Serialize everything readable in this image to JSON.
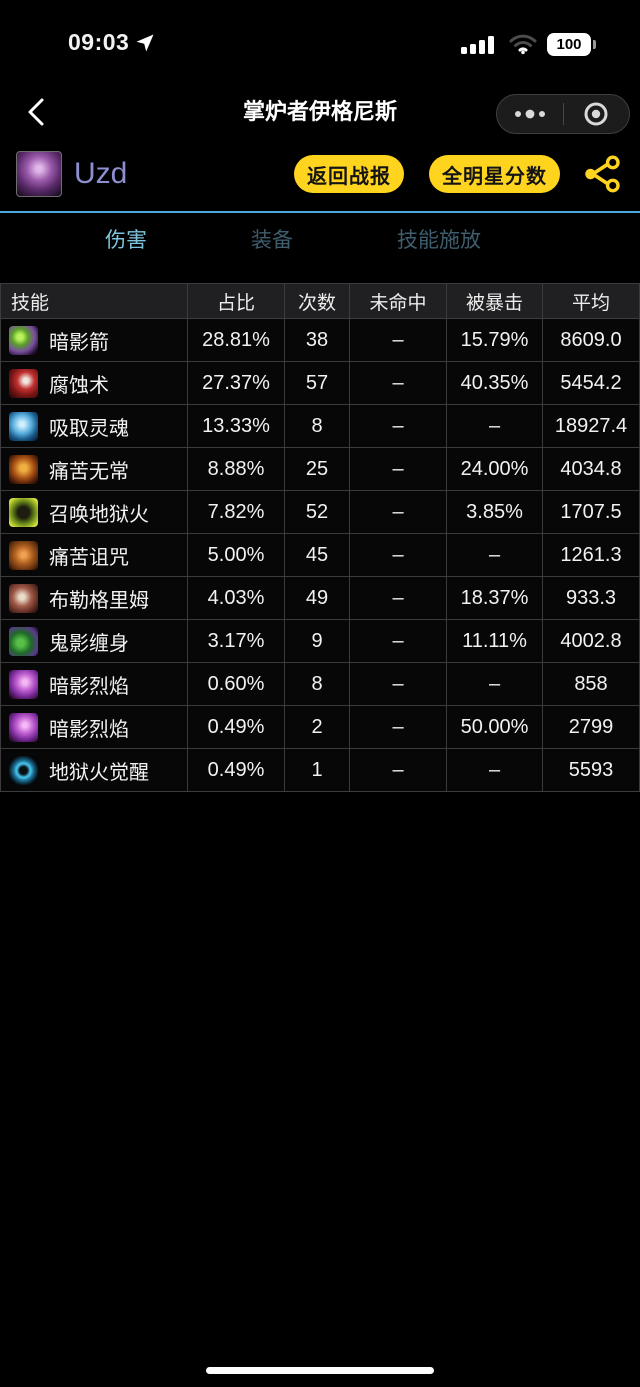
{
  "status_bar": {
    "time": "09:03",
    "battery": "100"
  },
  "nav": {
    "title": "掌炉者伊格尼斯"
  },
  "player": {
    "name": "Uzd",
    "back_button": "返回战报",
    "allstar_button": "全明星分数"
  },
  "tabs": [
    {
      "id": "damage",
      "label": "伤害",
      "active": true
    },
    {
      "id": "equipment",
      "label": "装备",
      "active": false
    },
    {
      "id": "casts",
      "label": "技能施放",
      "active": false
    }
  ],
  "table": {
    "headers": [
      "技能",
      "占比",
      "次数",
      "未命中",
      "被暴击",
      "平均"
    ],
    "rows": [
      {
        "skill": "暗影箭",
        "icon": "shadow-bolt",
        "pct": "28.81%",
        "count": "38",
        "miss": "–",
        "crit": "15.79%",
        "avg": "8609.0"
      },
      {
        "skill": "腐蚀术",
        "icon": "corruption",
        "pct": "27.37%",
        "count": "57",
        "miss": "–",
        "crit": "40.35%",
        "avg": "5454.2"
      },
      {
        "skill": "吸取灵魂",
        "icon": "drain-soul",
        "pct": "13.33%",
        "count": "8",
        "miss": "–",
        "crit": "–",
        "avg": "18927.4"
      },
      {
        "skill": "痛苦无常",
        "icon": "unstable-affliction",
        "pct": "8.88%",
        "count": "25",
        "miss": "–",
        "crit": "24.00%",
        "avg": "4034.8"
      },
      {
        "skill": "召唤地狱火",
        "icon": "inferno",
        "pct": "7.82%",
        "count": "52",
        "miss": "–",
        "crit": "3.85%",
        "avg": "1707.5"
      },
      {
        "skill": "痛苦诅咒",
        "icon": "curse-of-agony",
        "pct": "5.00%",
        "count": "45",
        "miss": "–",
        "crit": "–",
        "avg": "1261.3"
      },
      {
        "skill": "布勒格里姆",
        "icon": "bruelgrimm",
        "pct": "4.03%",
        "count": "49",
        "miss": "–",
        "crit": "18.37%",
        "avg": "933.3"
      },
      {
        "skill": "鬼影缠身",
        "icon": "haunt",
        "pct": "3.17%",
        "count": "9",
        "miss": "–",
        "crit": "11.11%",
        "avg": "4002.8"
      },
      {
        "skill": "暗影烈焰",
        "icon": "shadowflame",
        "pct": "0.60%",
        "count": "8",
        "miss": "–",
        "crit": "–",
        "avg": "858"
      },
      {
        "skill": "暗影烈焰",
        "icon": "shadowflame",
        "pct": "0.49%",
        "count": "2",
        "miss": "–",
        "crit": "50.00%",
        "avg": "2799"
      },
      {
        "skill": "地狱火觉醒",
        "icon": "infernal-awakening",
        "pct": "0.49%",
        "count": "1",
        "miss": "–",
        "crit": "–",
        "avg": "5593"
      }
    ]
  },
  "colors": {
    "accent_yellow": "#ffd41e",
    "divider_blue": "#4aa9d9",
    "tab_active": "#7fc4de",
    "tab_inactive": "#3e5d6d",
    "player_name": "#8d8fd0",
    "header_bg": "#202022",
    "row_bg": "#070707",
    "border": "#3b3b3d"
  }
}
